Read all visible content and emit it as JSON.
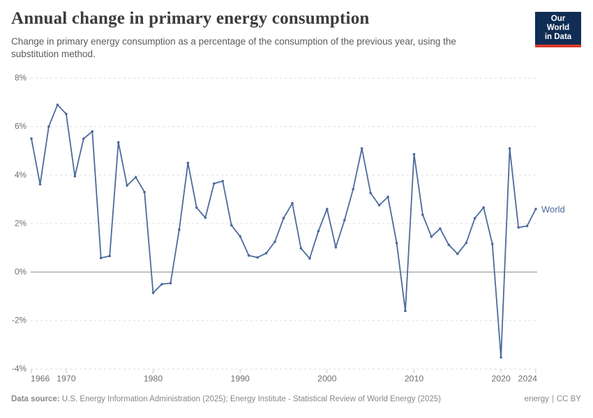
{
  "header": {
    "title": "Annual change in primary energy consumption",
    "subtitle": "Change in primary energy consumption as a percentage of the consumption of the previous year, using the substitution method.",
    "logo": {
      "line1": "Our World",
      "line2": "in Data"
    }
  },
  "chart_data": {
    "type": "line",
    "title": "Annual change in primary energy consumption",
    "xlabel": "",
    "ylabel": "",
    "ylim": [
      -4,
      8
    ],
    "grid": "horizontal-dashed",
    "zero_line": true,
    "legend_position": "end-of-line-label",
    "x": [
      1966,
      1967,
      1968,
      1969,
      1970,
      1971,
      1972,
      1973,
      1974,
      1975,
      1976,
      1977,
      1978,
      1979,
      1980,
      1981,
      1982,
      1983,
      1984,
      1985,
      1986,
      1987,
      1988,
      1989,
      1990,
      1991,
      1992,
      1993,
      1994,
      1995,
      1996,
      1997,
      1998,
      1999,
      2000,
      2001,
      2002,
      2003,
      2004,
      2005,
      2006,
      2007,
      2008,
      2009,
      2010,
      2011,
      2012,
      2013,
      2014,
      2015,
      2016,
      2017,
      2018,
      2019,
      2020,
      2021,
      2022,
      2023,
      2024
    ],
    "series": [
      {
        "name": "World",
        "color": "#4C6A9C",
        "values": [
          5.5,
          3.62,
          6.0,
          6.9,
          6.52,
          3.95,
          5.5,
          5.8,
          0.58,
          0.66,
          5.35,
          3.57,
          3.91,
          3.3,
          -0.86,
          -0.5,
          -0.46,
          1.75,
          4.5,
          2.66,
          2.24,
          3.65,
          3.75,
          1.93,
          1.47,
          0.68,
          0.6,
          0.78,
          1.25,
          2.22,
          2.84,
          0.98,
          0.56,
          1.69,
          2.6,
          1.02,
          2.14,
          3.42,
          5.1,
          3.26,
          2.76,
          3.1,
          1.2,
          -1.6,
          4.86,
          2.36,
          1.46,
          1.79,
          1.12,
          0.75,
          1.2,
          2.22,
          2.66,
          1.16,
          -3.52,
          5.1,
          1.84,
          1.9,
          2.6
        ]
      }
    ],
    "yticks": [
      {
        "value": 8,
        "label": "8%"
      },
      {
        "value": 6,
        "label": "6%"
      },
      {
        "value": 4,
        "label": "4%"
      },
      {
        "value": 2,
        "label": "2%"
      },
      {
        "value": 0,
        "label": "0%"
      },
      {
        "value": -2,
        "label": "-2%"
      },
      {
        "value": -4,
        "label": "-4%"
      }
    ],
    "xticks": [
      {
        "value": 1966,
        "label": "1966"
      },
      {
        "value": 1970,
        "label": "1970"
      },
      {
        "value": 1980,
        "label": "1980"
      },
      {
        "value": 1990,
        "label": "1990"
      },
      {
        "value": 2000,
        "label": "2000"
      },
      {
        "value": 2010,
        "label": "2010"
      },
      {
        "value": 2020,
        "label": "2020"
      },
      {
        "value": 2024,
        "label": "2024"
      }
    ]
  },
  "colors": {
    "accent_line": "#4C6A9C",
    "grid_line": "#dcdcdc",
    "zero_line": "#909090",
    "axis_tick": "#c9c9c9",
    "axis_text": "#6e6e6e",
    "logo_background": "#102d55",
    "logo_red_bar": "#d93a2b"
  },
  "footer": {
    "source_label": "Data source:",
    "source_text": "U.S. Energy Information Administration (2025); Energy Institute - Statistical Review of World Energy (2025)",
    "topic": "energy",
    "divider": "|",
    "license": "CC BY"
  }
}
